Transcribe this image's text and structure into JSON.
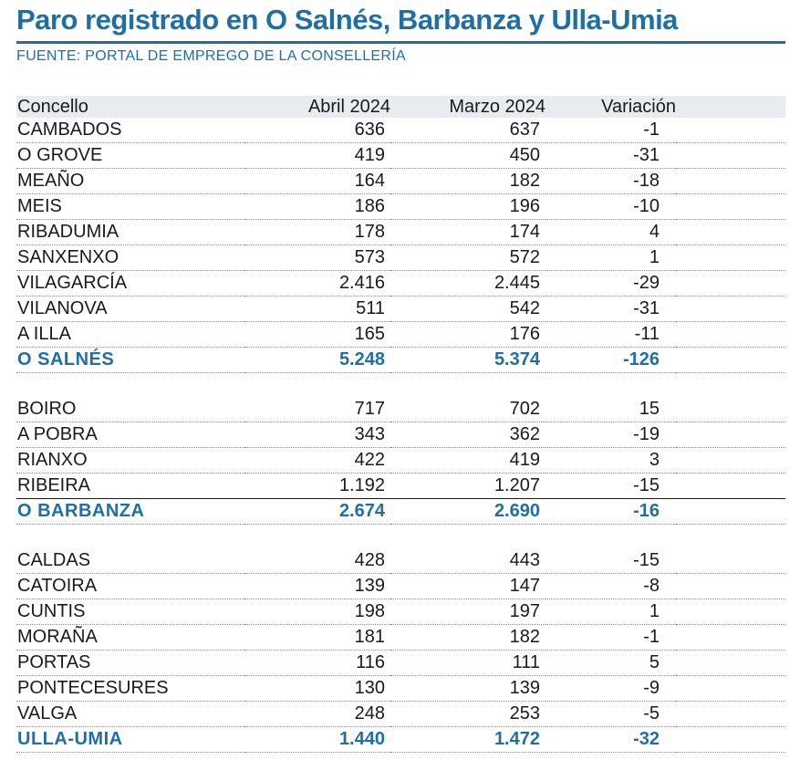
{
  "title": "Paro registrado en O Salnés, Barbanza y Ulla-Umia",
  "source": "FUENTE: PORTAL DE EMPREGO DE LA CONSELLERÍA",
  "colors": {
    "accent": "#1f6fa3",
    "header_bg": "#e8ecf1",
    "text": "#1a1a1a"
  },
  "table": {
    "columns": [
      "Concello",
      "Abril 2024",
      "Marzo 2024",
      "Variación"
    ],
    "groups": [
      {
        "rows": [
          {
            "name": "CAMBADOS",
            "abril": "636",
            "marzo": "637",
            "variacion": "-1"
          },
          {
            "name": "O GROVE",
            "abril": "419",
            "marzo": "450",
            "variacion": "-31"
          },
          {
            "name": "MEAÑO",
            "abril": "164",
            "marzo": "182",
            "variacion": "-18"
          },
          {
            "name": "MEIS",
            "abril": "186",
            "marzo": "196",
            "variacion": "-10"
          },
          {
            "name": "RIBADUMIA",
            "abril": "178",
            "marzo": "174",
            "variacion": "4"
          },
          {
            "name": "SANXENXO",
            "abril": "573",
            "marzo": "572",
            "variacion": "1"
          },
          {
            "name": "VILAGARCÍA",
            "abril": "2.416",
            "marzo": "2.445",
            "variacion": "-29"
          },
          {
            "name": "VILANOVA",
            "abril": "511",
            "marzo": "542",
            "variacion": "-31"
          },
          {
            "name": "A ILLA",
            "abril": "165",
            "marzo": "176",
            "variacion": "-11"
          }
        ],
        "total": {
          "name": "O SALNÉS",
          "abril": "5.248",
          "marzo": "5.374",
          "variacion": "-126"
        }
      },
      {
        "rows": [
          {
            "name": "BOIRO",
            "abril": "717",
            "marzo": "702",
            "variacion": "15"
          },
          {
            "name": "A POBRA",
            "abril": "343",
            "marzo": "362",
            "variacion": "-19"
          },
          {
            "name": "RIANXO",
            "abril": "422",
            "marzo": "419",
            "variacion": "3"
          },
          {
            "name": "RIBEIRA",
            "abril": "1.192",
            "marzo": "1.207",
            "variacion": "-15"
          }
        ],
        "total": {
          "name": "O BARBANZA",
          "abril": "2.674",
          "marzo": "2.690",
          "variacion": "-16"
        }
      },
      {
        "rows": [
          {
            "name": "CALDAS",
            "abril": "428",
            "marzo": "443",
            "variacion": "-15"
          },
          {
            "name": "CATOIRA",
            "abril": "139",
            "marzo": "147",
            "variacion": "-8"
          },
          {
            "name": "CUNTIS",
            "abril": "198",
            "marzo": "197",
            "variacion": "1"
          },
          {
            "name": "MORAÑA",
            "abril": "181",
            "marzo": "182",
            "variacion": "-1"
          },
          {
            "name": "PORTAS",
            "abril": "116",
            "marzo": "111",
            "variacion": "5"
          },
          {
            "name": "PONTECESURES",
            "abril": "130",
            "marzo": "139",
            "variacion": "-9"
          },
          {
            "name": "VALGA",
            "abril": "248",
            "marzo": "253",
            "variacion": "-5"
          }
        ],
        "total": {
          "name": "ULLA-UMIA",
          "abril": "1.440",
          "marzo": "1.472",
          "variacion": "-32"
        }
      }
    ]
  }
}
